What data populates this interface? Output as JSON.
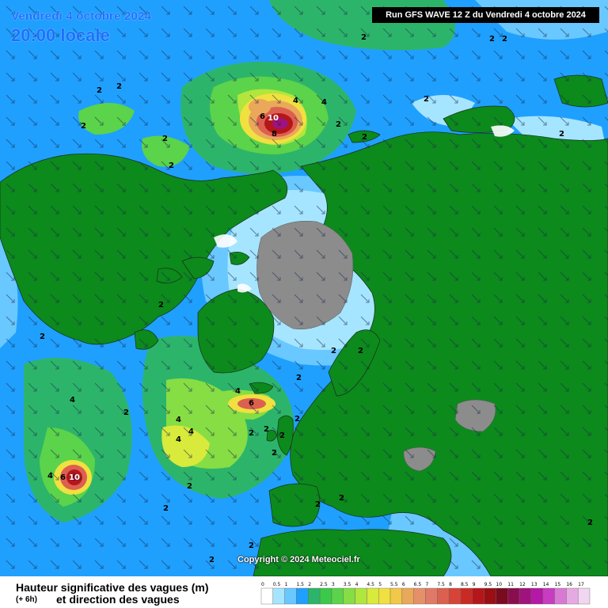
{
  "header": {
    "date": "Vendredi 4 octobre 2024",
    "local_time": "20:00 locale",
    "run_info": "Run GFS WAVE 12 Z du Vendredi 4 octobre 2024"
  },
  "copyright": "Copyright © 2024 Meteociel.fr",
  "footer": {
    "title": "Hauteur significative des vagues (m)",
    "offset": "(+ 6h)",
    "subtitle": "et direction des vagues"
  },
  "legend": {
    "labels": [
      "0",
      "0.5",
      "1",
      "1.5",
      "2",
      "2.5",
      "3",
      "3.5",
      "4",
      "4.5",
      "5",
      "5.5",
      "6",
      "6.5",
      "7",
      "7.5",
      "8",
      "8.5",
      "9",
      "9.5",
      "10",
      "11",
      "12",
      "13",
      "14",
      "15",
      "16",
      "17"
    ],
    "colors": [
      "#ffffff",
      "#a6e5ff",
      "#69c8ff",
      "#1fa0ff",
      "#2cb56a",
      "#3bc94a",
      "#5bd34a",
      "#86dd44",
      "#b0e63e",
      "#d8ea3c",
      "#f0e040",
      "#f2c848",
      "#eaa85a",
      "#e6906a",
      "#e07a68",
      "#dc6050",
      "#d64438",
      "#ca2a24",
      "#b5161a",
      "#9a0f14",
      "#7a0a1e",
      "#8a0e4e",
      "#a0127c",
      "#b418a4",
      "#c83cc0",
      "#d87ad4",
      "#e6aae2",
      "#f0d6f0"
    ]
  },
  "map_labels": [
    "2",
    "4",
    "6",
    "8",
    "10"
  ],
  "colors": {
    "land": "#0c8a1c",
    "ice": "#8c8c8c",
    "sea_low": "#a6e5ff",
    "sea_mid": "#69c8ff",
    "sea_2m": "#1fa0ff",
    "accent": "#1f6fff"
  }
}
